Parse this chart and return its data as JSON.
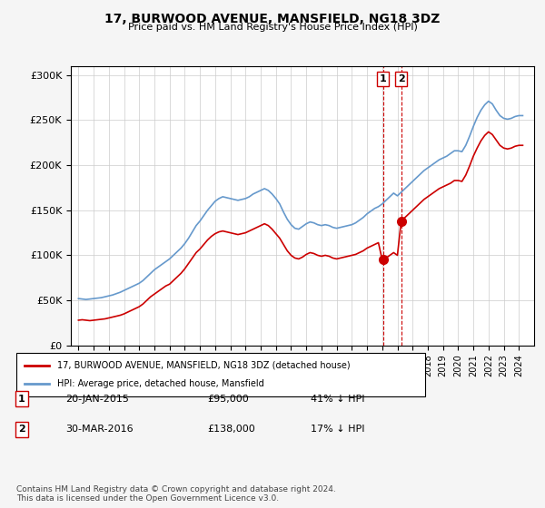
{
  "title": "17, BURWOOD AVENUE, MANSFIELD, NG18 3DZ",
  "subtitle": "Price paid vs. HM Land Registry's House Price Index (HPI)",
  "hpi_label": "HPI: Average price, detached house, Mansfield",
  "property_label": "17, BURWOOD AVENUE, MANSFIELD, NG18 3DZ (detached house)",
  "hpi_color": "#6699cc",
  "property_color": "#cc0000",
  "annotation_color": "#cc0000",
  "vline_color": "#cc0000",
  "background_color": "#f5f5f5",
  "plot_bg_color": "#ffffff",
  "ylim": [
    0,
    310000
  ],
  "ytick_values": [
    0,
    50000,
    100000,
    150000,
    200000,
    250000,
    300000
  ],
  "ytick_labels": [
    "£0",
    "£50K",
    "£100K",
    "£150K",
    "£200K",
    "£250K",
    "£300K"
  ],
  "sale1_date": "20-JAN-2015",
  "sale1_price": 95000,
  "sale1_year": 2015.05,
  "sale1_pct": "41% ↓ HPI",
  "sale2_date": "30-MAR-2016",
  "sale2_price": 138000,
  "sale2_year": 2016.25,
  "sale2_pct": "17% ↓ HPI",
  "copyright_text": "Contains HM Land Registry data © Crown copyright and database right 2024.\nThis data is licensed under the Open Government Licence v3.0.",
  "hpi_x": [
    1995.0,
    1995.25,
    1995.5,
    1995.75,
    1996.0,
    1996.25,
    1996.5,
    1996.75,
    1997.0,
    1997.25,
    1997.5,
    1997.75,
    1998.0,
    1998.25,
    1998.5,
    1998.75,
    1999.0,
    1999.25,
    1999.5,
    1999.75,
    2000.0,
    2000.25,
    2000.5,
    2000.75,
    2001.0,
    2001.25,
    2001.5,
    2001.75,
    2002.0,
    2002.25,
    2002.5,
    2002.75,
    2003.0,
    2003.25,
    2003.5,
    2003.75,
    2004.0,
    2004.25,
    2004.5,
    2004.75,
    2005.0,
    2005.25,
    2005.5,
    2005.75,
    2006.0,
    2006.25,
    2006.5,
    2006.75,
    2007.0,
    2007.25,
    2007.5,
    2007.75,
    2008.0,
    2008.25,
    2008.5,
    2008.75,
    2009.0,
    2009.25,
    2009.5,
    2009.75,
    2010.0,
    2010.25,
    2010.5,
    2010.75,
    2011.0,
    2011.25,
    2011.5,
    2011.75,
    2012.0,
    2012.25,
    2012.5,
    2012.75,
    2013.0,
    2013.25,
    2013.5,
    2013.75,
    2014.0,
    2014.25,
    2014.5,
    2014.75,
    2015.0,
    2015.25,
    2015.5,
    2015.75,
    2016.0,
    2016.25,
    2016.5,
    2016.75,
    2017.0,
    2017.25,
    2017.5,
    2017.75,
    2018.0,
    2018.25,
    2018.5,
    2018.75,
    2019.0,
    2019.25,
    2019.5,
    2019.75,
    2020.0,
    2020.25,
    2020.5,
    2020.75,
    2021.0,
    2021.25,
    2021.5,
    2021.75,
    2022.0,
    2022.25,
    2022.5,
    2022.75,
    2023.0,
    2023.25,
    2023.5,
    2023.75,
    2024.0,
    2024.25
  ],
  "hpi_y": [
    52000,
    51500,
    51000,
    51500,
    52000,
    52500,
    53000,
    54000,
    55000,
    56000,
    57500,
    59000,
    61000,
    63000,
    65000,
    67000,
    69000,
    72000,
    76000,
    80000,
    84000,
    87000,
    90000,
    93000,
    96000,
    100000,
    104000,
    108000,
    113000,
    119000,
    126000,
    133000,
    138000,
    144000,
    150000,
    155000,
    160000,
    163000,
    165000,
    164000,
    163000,
    162000,
    161000,
    162000,
    163000,
    165000,
    168000,
    170000,
    172000,
    174000,
    172000,
    168000,
    163000,
    157000,
    148000,
    140000,
    134000,
    130000,
    129000,
    132000,
    135000,
    137000,
    136000,
    134000,
    133000,
    134000,
    133000,
    131000,
    130000,
    131000,
    132000,
    133000,
    134000,
    136000,
    139000,
    142000,
    146000,
    149000,
    152000,
    154000,
    157000,
    161000,
    165000,
    169000,
    166000,
    170000,
    174000,
    178000,
    182000,
    186000,
    190000,
    194000,
    197000,
    200000,
    203000,
    206000,
    208000,
    210000,
    213000,
    216000,
    216000,
    215000,
    222000,
    232000,
    243000,
    253000,
    261000,
    267000,
    271000,
    268000,
    261000,
    255000,
    252000,
    251000,
    252000,
    254000,
    255000,
    255000
  ],
  "prop_x": [
    1995.0,
    1995.25,
    1995.5,
    1995.75,
    1996.0,
    1996.25,
    1996.5,
    1996.75,
    1997.0,
    1997.25,
    1997.5,
    1997.75,
    1998.0,
    1998.25,
    1998.5,
    1998.75,
    1999.0,
    1999.25,
    1999.5,
    1999.75,
    2000.0,
    2000.25,
    2000.5,
    2000.75,
    2001.0,
    2001.25,
    2001.5,
    2001.75,
    2002.0,
    2002.25,
    2002.5,
    2002.75,
    2003.0,
    2003.25,
    2003.5,
    2003.75,
    2004.0,
    2004.25,
    2004.5,
    2004.75,
    2005.0,
    2005.25,
    2005.5,
    2005.75,
    2006.0,
    2006.25,
    2006.5,
    2006.75,
    2007.0,
    2007.25,
    2007.5,
    2007.75,
    2008.0,
    2008.25,
    2008.5,
    2008.75,
    2009.0,
    2009.25,
    2009.5,
    2009.75,
    2010.0,
    2010.25,
    2010.5,
    2010.75,
    2011.0,
    2011.25,
    2011.5,
    2011.75,
    2012.0,
    2012.25,
    2012.5,
    2012.75,
    2013.0,
    2013.25,
    2013.5,
    2013.75,
    2014.0,
    2014.25,
    2014.5,
    2014.75,
    2015.0,
    2015.25,
    2015.5,
    2015.75,
    2016.0,
    2016.25,
    2016.5,
    2016.75,
    2017.0,
    2017.25,
    2017.5,
    2017.75,
    2018.0,
    2018.25,
    2018.5,
    2018.75,
    2019.0,
    2019.25,
    2019.5,
    2019.75,
    2020.0,
    2020.25,
    2020.5,
    2020.75,
    2021.0,
    2021.25,
    2021.5,
    2021.75,
    2022.0,
    2022.25,
    2022.5,
    2022.75,
    2023.0,
    2023.25,
    2023.5,
    2023.75,
    2024.0,
    2024.25
  ],
  "prop_y": [
    28000,
    28500,
    28000,
    27500,
    28000,
    28500,
    29000,
    29500,
    30500,
    31500,
    32500,
    33500,
    35000,
    37000,
    39000,
    41000,
    43000,
    46000,
    50000,
    54000,
    57000,
    60000,
    63000,
    66000,
    68000,
    72000,
    76000,
    80000,
    85000,
    91000,
    97000,
    103000,
    107000,
    112000,
    117000,
    121000,
    124000,
    126000,
    127000,
    126000,
    125000,
    124000,
    123000,
    124000,
    125000,
    127000,
    129000,
    131000,
    133000,
    135000,
    133000,
    129000,
    124000,
    119000,
    112000,
    105000,
    100000,
    97000,
    96000,
    98000,
    101000,
    103000,
    102000,
    100000,
    99000,
    100000,
    99000,
    97000,
    96000,
    97000,
    98000,
    99000,
    100000,
    101000,
    103000,
    105000,
    108000,
    110000,
    112000,
    114000,
    95000,
    97000,
    100000,
    103000,
    100000,
    138000,
    142000,
    146000,
    150000,
    154000,
    158000,
    162000,
    165000,
    168000,
    171000,
    174000,
    176000,
    178000,
    180000,
    183000,
    183000,
    182000,
    189000,
    199000,
    210000,
    219000,
    227000,
    233000,
    237000,
    234000,
    228000,
    222000,
    219000,
    218000,
    219000,
    221000,
    222000,
    222000
  ]
}
